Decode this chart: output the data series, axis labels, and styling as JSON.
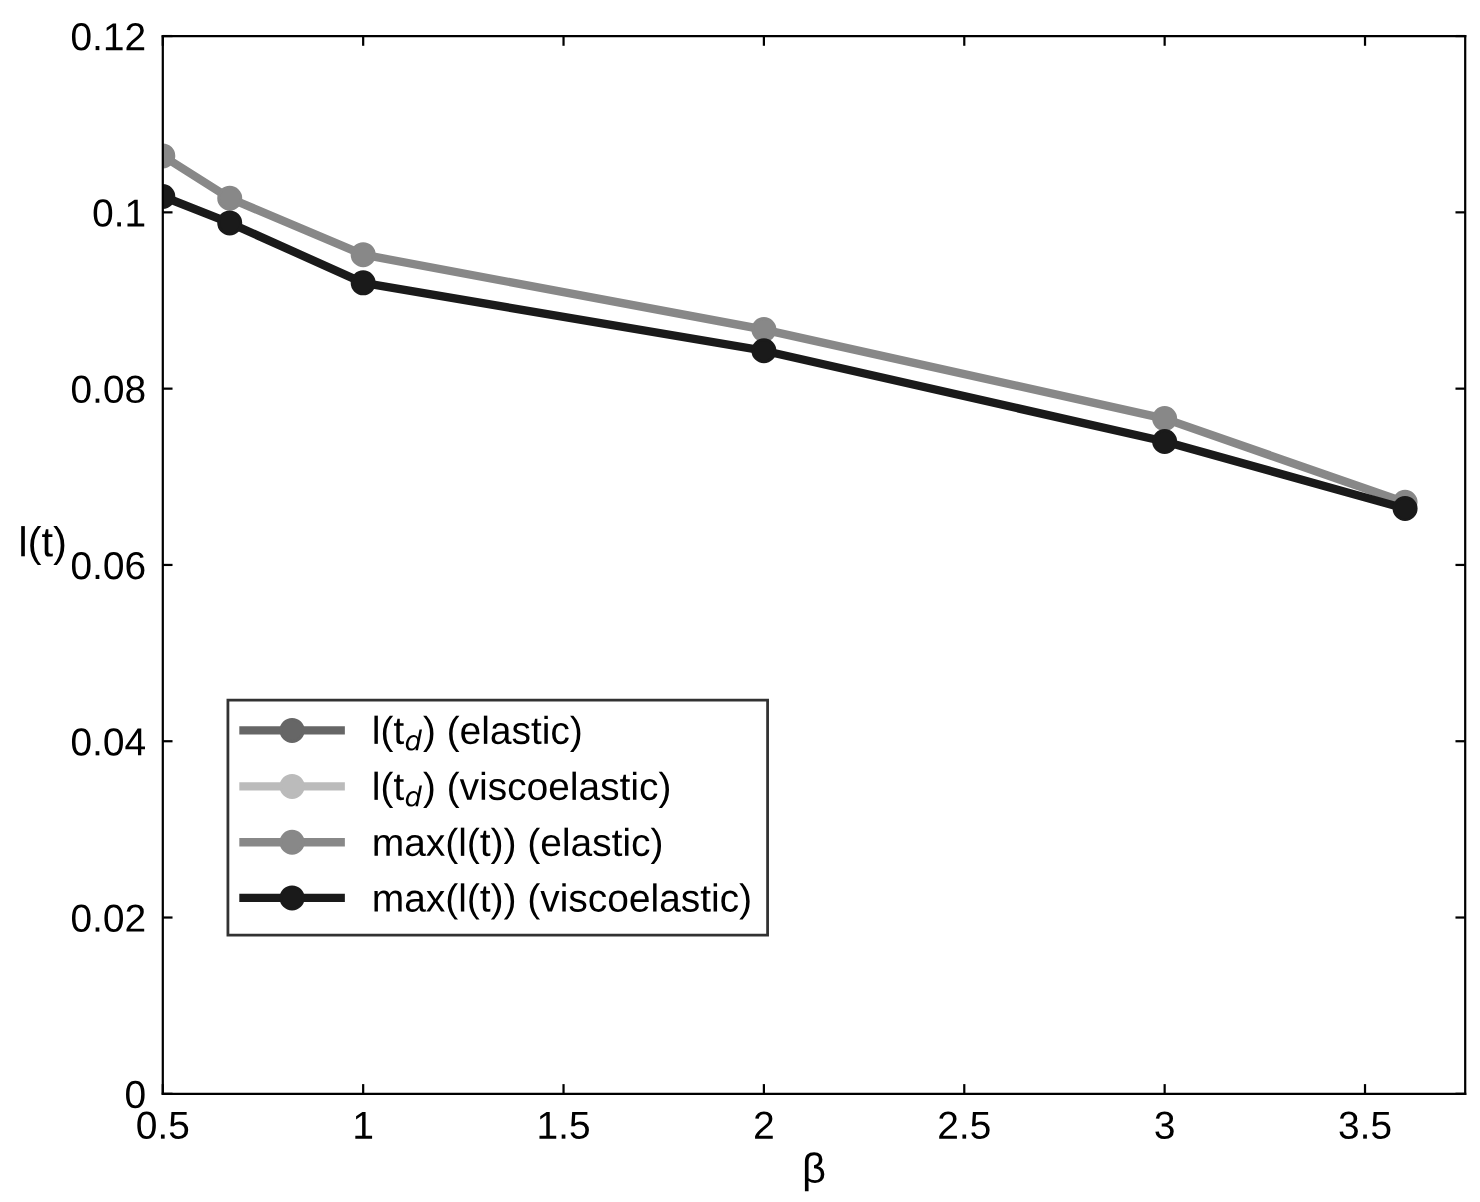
{
  "chart_data": {
    "type": "line",
    "xlabel": "β",
    "ylabel": "l(t)",
    "x": [
      0.5,
      0.667,
      1,
      2,
      3,
      3.6
    ],
    "series": [
      {
        "name": "l(t$_{d}$) (elastic)",
        "color": "#666666",
        "values": [
          null,
          null,
          null,
          null,
          null,
          null
        ]
      },
      {
        "name": "l(t$_{d}$) (viscoelastic)",
        "color": "#bbbbbb",
        "values": [
          null,
          null,
          null,
          null,
          null,
          null
        ]
      },
      {
        "name": "max(l(t)) (elastic)",
        "color": "#888888",
        "values": [
          0.1064,
          0.1016,
          0.0952,
          0.0867,
          0.0766,
          0.0671
        ]
      },
      {
        "name": "max(l(t)) (viscoelastic)",
        "color": "#1a1a1a",
        "values": [
          0.1018,
          0.0988,
          0.092,
          0.0843,
          0.074,
          0.0664
        ]
      }
    ],
    "xlim": [
      0.5,
      3.75
    ],
    "xticks": [
      0.5,
      1,
      1.5,
      2,
      2.5,
      3,
      3.5
    ],
    "ylim": [
      0,
      0.12
    ],
    "yticks": [
      0,
      0.02,
      0.04,
      0.06,
      0.08,
      0.1,
      0.12
    ],
    "grid": false,
    "legend": "bottom left",
    "marker": "circle",
    "line_style": "solid"
  }
}
